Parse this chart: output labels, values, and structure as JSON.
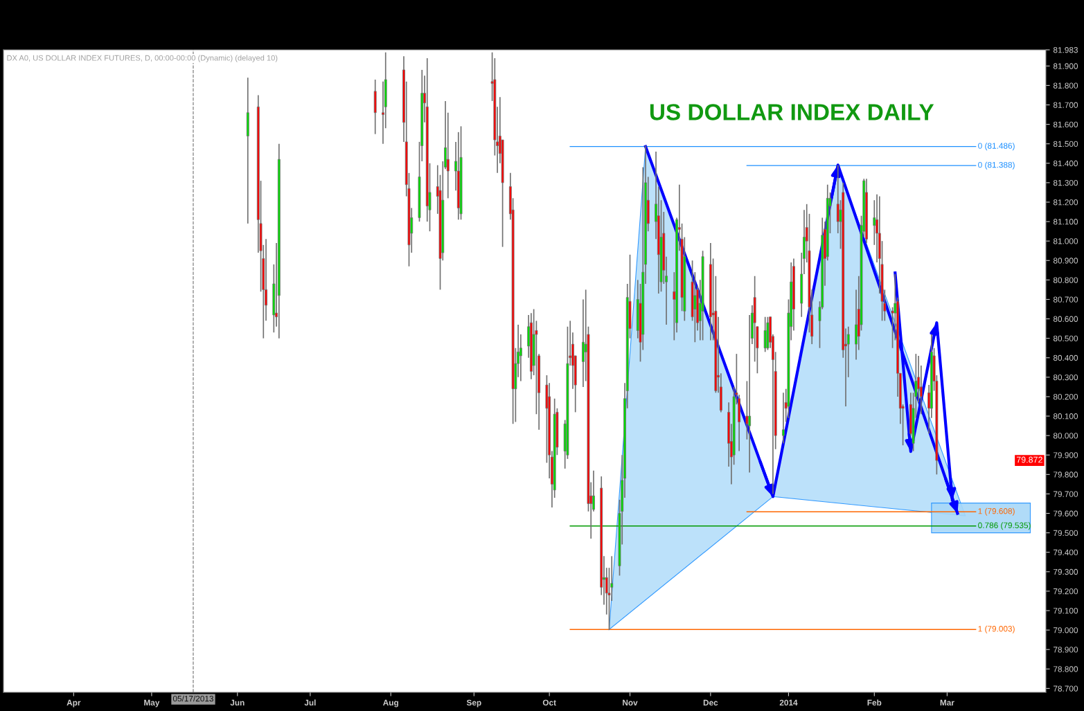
{
  "chart_data": {
    "type": "candlestick",
    "title": "US DOLLAR INDEX DAILY",
    "annotations": [
      "DX A0, US DOLLAR INDEX FUTURES, D, 00:00-00:00 (Dynamic) (delayed 10)",
      {
        "text": "79.872",
        "y": 79.872
      }
    ],
    "xlim": [
      "2013-03-05",
      "2014-04-10"
    ],
    "ylim": [
      78.68,
      81.983
    ],
    "xticks": [
      {
        "value": "2013-04-01",
        "label": "Apr"
      },
      {
        "value": "2013-05-01",
        "label": "May"
      },
      {
        "value": "2013-06-03",
        "label": "Jun"
      },
      {
        "value": "2013-07-01",
        "label": "Jul"
      },
      {
        "value": "2013-08-01",
        "label": "Aug"
      },
      {
        "value": "2013-09-02",
        "label": "Sep"
      },
      {
        "value": "2013-10-01",
        "label": "Oct"
      },
      {
        "value": "2013-11-01",
        "label": "Nov"
      },
      {
        "value": "2013-12-02",
        "label": "Dec"
      },
      {
        "value": "2014-01-01",
        "label": "2014"
      },
      {
        "value": "2014-02-03",
        "label": "Feb"
      },
      {
        "value": "2014-03-03",
        "label": "Mar"
      }
    ],
    "yticks": [
      {
        "value": 78.7,
        "label": "78.700"
      },
      {
        "value": 78.8,
        "label": "78.800"
      },
      {
        "value": 78.9,
        "label": "78.900"
      },
      {
        "value": 79.0,
        "label": "79.000"
      },
      {
        "value": 79.1,
        "label": "79.100"
      },
      {
        "value": 79.2,
        "label": "79.200"
      },
      {
        "value": 79.3,
        "label": "79.300"
      },
      {
        "value": 79.4,
        "label": "79.400"
      },
      {
        "value": 79.5,
        "label": "79.500"
      },
      {
        "value": 79.6,
        "label": "79.600"
      },
      {
        "value": 79.7,
        "label": "79.700"
      },
      {
        "value": 79.8,
        "label": "79.800"
      },
      {
        "value": 79.9,
        "label": "79.900"
      },
      {
        "value": 80.0,
        "label": "80.000"
      },
      {
        "value": 80.1,
        "label": "80.100"
      },
      {
        "value": 80.2,
        "label": "80.200"
      },
      {
        "value": 80.3,
        "label": "80.300"
      },
      {
        "value": 80.4,
        "label": "80.400"
      },
      {
        "value": 80.5,
        "label": "80.500"
      },
      {
        "value": 80.6,
        "label": "80.600"
      },
      {
        "value": 80.7,
        "label": "80.700"
      },
      {
        "value": 80.8,
        "label": "80.800"
      },
      {
        "value": 80.9,
        "label": "80.900"
      },
      {
        "value": 81.0,
        "label": "81.000"
      },
      {
        "value": 81.1,
        "label": "81.100"
      },
      {
        "value": 81.2,
        "label": "81.200"
      },
      {
        "value": 81.3,
        "label": "81.300"
      },
      {
        "value": 81.4,
        "label": "81.400"
      },
      {
        "value": 81.5,
        "label": "81.500"
      },
      {
        "value": 81.6,
        "label": "81.600"
      },
      {
        "value": 81.7,
        "label": "81.700"
      },
      {
        "value": 81.8,
        "label": "81.800"
      },
      {
        "value": 81.9,
        "label": "81.900"
      },
      {
        "value": 81.983,
        "label": "81.983"
      }
    ],
    "grid": false,
    "legend": false,
    "ref_lines": [
      {
        "axis": "x",
        "value": "2013-05-17",
        "label": "05/17/2013",
        "color": "#808080",
        "line_style": "dashed"
      }
    ],
    "x": [
      "2013-06-07",
      "2013-06-11",
      "2013-06-12",
      "2013-06-13",
      "2013-06-14",
      "2013-06-17",
      "2013-06-18",
      "2013-06-19",
      "2013-07-26",
      "2013-07-29",
      "2013-07-30",
      "2013-08-06",
      "2013-08-07",
      "2013-08-08",
      "2013-08-09",
      "2013-08-12",
      "2013-08-13",
      "2013-08-14",
      "2013-08-15",
      "2013-08-16",
      "2013-08-19",
      "2013-08-20",
      "2013-08-21",
      "2013-08-22",
      "2013-08-23",
      "2013-08-26",
      "2013-08-27",
      "2013-08-28",
      "2013-09-09",
      "2013-09-10",
      "2013-09-11",
      "2013-09-12",
      "2013-09-13",
      "2013-09-16",
      "2013-09-17",
      "2013-09-18",
      "2013-09-19",
      "2013-09-20",
      "2013-09-23",
      "2013-09-24",
      "2013-09-25",
      "2013-09-26",
      "2013-09-27",
      "2013-09-30",
      "2013-10-01",
      "2013-10-02",
      "2013-10-03",
      "2013-10-04",
      "2013-10-07",
      "2013-10-08",
      "2013-10-09",
      "2013-10-10",
      "2013-10-11",
      "2013-10-14",
      "2013-10-15",
      "2013-10-16",
      "2013-10-17",
      "2013-10-18",
      "2013-10-21",
      "2013-10-22",
      "2013-10-23",
      "2013-10-24",
      "2013-10-25",
      "2013-10-28",
      "2013-10-29",
      "2013-10-30",
      "2013-10-31",
      "2013-11-01",
      "2013-11-04",
      "2013-11-05",
      "2013-11-06",
      "2013-11-07",
      "2013-11-08",
      "2013-11-11",
      "2013-11-12",
      "2013-11-13",
      "2013-11-14",
      "2013-11-15",
      "2013-11-18",
      "2013-11-19",
      "2013-11-20",
      "2013-11-21",
      "2013-11-22",
      "2013-11-25",
      "2013-11-26",
      "2013-11-27",
      "2013-11-28",
      "2013-11-29",
      "2013-12-02",
      "2013-12-03",
      "2013-12-04",
      "2013-12-05",
      "2013-12-06",
      "2013-12-09",
      "2013-12-10",
      "2013-12-11",
      "2013-12-12",
      "2013-12-13",
      "2013-12-16",
      "2013-12-17",
      "2013-12-18",
      "2013-12-19",
      "2013-12-20",
      "2013-12-23",
      "2013-12-24",
      "2013-12-25",
      "2013-12-26",
      "2013-12-27",
      "2013-12-30",
      "2013-12-31",
      "2014-01-01",
      "2014-01-02",
      "2014-01-03",
      "2014-01-06",
      "2014-01-07",
      "2014-01-08",
      "2014-01-09",
      "2014-01-10",
      "2014-01-13",
      "2014-01-14",
      "2014-01-15",
      "2014-01-16",
      "2014-01-17",
      "2014-01-20",
      "2014-01-21",
      "2014-01-22",
      "2014-01-23",
      "2014-01-24",
      "2014-01-27",
      "2014-01-28",
      "2014-01-29",
      "2014-01-30",
      "2014-01-31",
      "2014-02-03",
      "2014-02-04",
      "2014-02-05",
      "2014-02-06",
      "2014-02-07",
      "2014-02-10",
      "2014-02-11",
      "2014-02-12",
      "2014-02-13",
      "2014-02-14",
      "2014-02-17",
      "2014-02-18",
      "2014-02-19",
      "2014-02-20",
      "2014-02-21",
      "2014-02-24",
      "2014-02-25",
      "2014-02-26",
      "2014-02-27"
    ],
    "ohlc": [
      [
        81.54,
        81.84,
        81.09,
        81.66
      ],
      [
        81.69,
        81.75,
        80.94,
        81.11
      ],
      [
        81.09,
        81.31,
        80.74,
        80.95
      ],
      [
        80.91,
        80.98,
        80.5,
        80.75
      ],
      [
        80.75,
        81.01,
        80.59,
        80.67
      ],
      [
        80.62,
        80.88,
        80.53,
        80.78
      ],
      [
        80.63,
        80.99,
        80.56,
        80.61
      ],
      [
        80.72,
        81.5,
        80.5,
        81.42
      ],
      [
        81.77,
        81.83,
        81.55,
        81.66
      ],
      [
        81.66,
        81.82,
        81.5,
        81.65
      ],
      [
        81.69,
        81.97,
        81.58,
        81.83
      ],
      [
        81.88,
        81.95,
        81.51,
        81.61
      ],
      [
        81.51,
        81.82,
        81.23,
        81.29
      ],
      [
        81.27,
        81.35,
        80.87,
        80.98
      ],
      [
        81.04,
        81.17,
        80.94,
        81.12
      ],
      [
        81.12,
        81.51,
        81.1,
        81.33
      ],
      [
        81.49,
        81.88,
        81.41,
        81.76
      ],
      [
        81.76,
        81.85,
        81.61,
        81.71
      ],
      [
        81.69,
        81.94,
        81.1,
        81.18
      ],
      [
        81.16,
        81.4,
        81.05,
        81.25
      ],
      [
        81.28,
        81.39,
        81.14,
        81.23
      ],
      [
        81.26,
        81.34,
        80.75,
        80.91
      ],
      [
        80.94,
        81.41,
        80.9,
        81.21
      ],
      [
        81.38,
        81.72,
        81.37,
        81.48
      ],
      [
        81.42,
        81.66,
        81.22,
        81.36
      ],
      [
        81.36,
        81.51,
        81.26,
        81.41
      ],
      [
        81.36,
        81.56,
        81.11,
        81.17
      ],
      [
        81.14,
        81.59,
        81.11,
        81.43
      ],
      [
        81.82,
        81.97,
        81.72,
        81.81
      ],
      [
        81.83,
        81.94,
        81.44,
        81.52
      ],
      [
        81.51,
        81.69,
        81.35,
        81.49
      ],
      [
        81.54,
        81.74,
        81.4,
        81.45
      ],
      [
        81.52,
        81.52,
        80.97,
        81.3
      ],
      [
        81.28,
        81.35,
        81.11,
        81.14
      ],
      [
        81.16,
        81.22,
        80.06,
        80.24
      ],
      [
        80.24,
        80.45,
        80.07,
        80.37
      ],
      [
        80.37,
        80.57,
        80.3,
        80.43
      ],
      [
        80.41,
        80.52,
        80.28,
        80.45
      ],
      [
        80.46,
        80.62,
        80.4,
        80.56
      ],
      [
        80.58,
        80.63,
        80.29,
        80.33
      ],
      [
        80.36,
        80.65,
        80.31,
        80.52
      ],
      [
        80.54,
        80.59,
        80.11,
        80.52
      ],
      [
        80.41,
        80.42,
        80.03,
        80.22
      ],
      [
        80.26,
        80.31,
        79.86,
        80.14
      ],
      [
        80.2,
        80.27,
        79.78,
        79.9
      ],
      [
        79.89,
        79.92,
        79.63,
        79.75
      ],
      [
        79.72,
        80.19,
        79.68,
        80.11
      ],
      [
        80.12,
        80.14,
        79.9,
        79.94
      ],
      [
        79.92,
        80.08,
        79.83,
        80.06
      ],
      [
        79.9,
        80.56,
        79.88,
        80.37
      ],
      [
        80.41,
        80.59,
        80.36,
        80.4
      ],
      [
        80.47,
        80.53,
        80.24,
        80.36
      ],
      [
        80.41,
        80.41,
        80.12,
        80.26
      ],
      [
        80.38,
        80.7,
        80.25,
        80.48
      ],
      [
        80.43,
        80.75,
        80.28,
        80.47
      ],
      [
        80.52,
        80.56,
        79.61,
        79.65
      ],
      [
        79.69,
        79.76,
        79.47,
        79.65
      ],
      [
        79.62,
        79.82,
        79.61,
        79.69
      ],
      [
        79.73,
        79.79,
        79.18,
        79.22
      ],
      [
        79.26,
        79.38,
        79.13,
        79.27
      ],
      [
        79.27,
        79.32,
        79.08,
        79.19
      ],
      [
        79.19,
        79.32,
        79.0,
        79.18
      ],
      [
        79.22,
        79.38,
        79.15,
        79.24
      ],
      [
        79.33,
        79.67,
        79.28,
        79.6
      ],
      [
        79.61,
        79.9,
        79.44,
        79.77
      ],
      [
        79.78,
        80.27,
        79.68,
        80.19
      ],
      [
        80.23,
        80.78,
        80.14,
        80.71
      ],
      [
        80.69,
        80.93,
        80.5,
        80.55
      ],
      [
        80.54,
        80.8,
        80.5,
        80.7
      ],
      [
        80.68,
        80.78,
        80.38,
        80.48
      ],
      [
        80.52,
        81.38,
        80.44,
        80.84
      ],
      [
        80.88,
        81.49,
        80.78,
        81.3
      ],
      [
        81.21,
        81.33,
        81.05,
        81.09
      ],
      [
        81.1,
        81.46,
        81.01,
        81.19
      ],
      [
        81.13,
        81.28,
        80.73,
        80.93
      ],
      [
        80.79,
        81.21,
        80.74,
        81.02
      ],
      [
        81.04,
        81.15,
        80.78,
        80.85
      ],
      [
        80.79,
        80.92,
        80.57,
        80.82
      ],
      [
        80.74,
        80.84,
        80.49,
        80.7
      ],
      [
        80.58,
        81.12,
        80.53,
        81.11
      ],
      [
        81.07,
        81.29,
        80.95,
        81.06
      ],
      [
        81.01,
        81.09,
        80.64,
        80.71
      ],
      [
        80.64,
        81.02,
        80.59,
        80.92
      ],
      [
        80.79,
        80.9,
        80.59,
        80.61
      ],
      [
        80.65,
        80.84,
        80.48,
        80.72
      ],
      [
        80.75,
        80.77,
        80.54,
        80.58
      ],
      [
        80.59,
        80.8,
        80.49,
        80.68
      ],
      [
        80.64,
        80.95,
        80.49,
        80.92
      ],
      [
        80.88,
        80.99,
        80.49,
        80.61
      ],
      [
        80.63,
        80.91,
        80.49,
        80.62
      ],
      [
        80.64,
        80.82,
        80.22,
        80.23
      ],
      [
        80.31,
        80.61,
        80.22,
        80.3
      ],
      [
        80.25,
        80.32,
        80.12,
        80.13
      ],
      [
        80.12,
        80.17,
        79.84,
        79.96
      ],
      [
        79.97,
        80.06,
        79.75,
        79.89
      ],
      [
        79.9,
        80.25,
        79.85,
        80.2
      ],
      [
        80.22,
        80.42,
        80.16,
        80.21
      ],
      [
        80.19,
        80.21,
        79.92,
        80.07
      ],
      [
        80.1,
        80.28,
        79.98,
        80.06
      ],
      [
        80.05,
        80.62,
        79.81,
        80.1
      ],
      [
        80.5,
        80.67,
        80.47,
        80.63
      ],
      [
        80.71,
        80.82,
        80.38,
        80.58
      ],
      [
        80.56,
        80.56,
        80.32,
        80.45
      ],
      [
        80.45,
        80.61,
        80.43,
        80.54
      ],
      [
        80.45,
        80.61,
        80.44,
        80.58
      ],
      [
        80.61,
        80.61,
        80.45,
        80.48
      ],
      [
        80.51,
        80.52,
        79.7,
        80.39
      ],
      [
        80.33,
        80.43,
        79.93,
        80.0
      ],
      [
        80.0,
        80.22,
        79.96,
        80.03
      ],
      [
        80.17,
        80.24,
        80.07,
        80.14
      ],
      [
        80.15,
        80.7,
        80.09,
        80.63
      ],
      [
        80.56,
        80.89,
        80.49,
        80.79
      ],
      [
        80.87,
        80.91,
        80.54,
        80.65
      ],
      [
        80.68,
        80.94,
        80.61,
        80.83
      ],
      [
        80.91,
        81.16,
        80.83,
        81.02
      ],
      [
        81.07,
        81.19,
        80.89,
        81.0
      ],
      [
        80.95,
        81.14,
        80.53,
        80.66
      ],
      [
        80.62,
        80.75,
        80.47,
        80.51
      ],
      [
        80.59,
        80.69,
        80.45,
        80.66
      ],
      [
        80.66,
        81.12,
        80.65,
        81.03
      ],
      [
        81.06,
        81.1,
        80.77,
        80.91
      ],
      [
        80.92,
        81.29,
        80.9,
        81.22
      ],
      [
        81.18,
        81.25,
        81.04,
        81.22
      ],
      [
        81.19,
        81.39,
        81.04,
        81.1
      ],
      [
        81.1,
        81.21,
        80.96,
        81.16
      ],
      [
        81.25,
        81.3,
        80.4,
        80.44
      ],
      [
        80.47,
        80.55,
        80.15,
        80.46
      ],
      [
        80.47,
        80.56,
        80.3,
        80.52
      ],
      [
        80.47,
        80.75,
        80.39,
        80.57
      ],
      [
        80.65,
        80.82,
        80.44,
        80.51
      ],
      [
        80.57,
        81.13,
        80.54,
        81.08
      ],
      [
        81.05,
        81.32,
        81.02,
        81.31
      ],
      [
        81.25,
        81.32,
        80.99,
        81.01
      ],
      [
        81.08,
        81.21,
        80.98,
        81.12
      ],
      [
        81.11,
        81.24,
        80.89,
        81.04
      ],
      [
        81.04,
        81.23,
        80.73,
        80.91
      ],
      [
        80.88,
        81.0,
        80.59,
        80.69
      ],
      [
        80.68,
        80.75,
        80.59,
        80.64
      ],
      [
        80.64,
        80.66,
        80.45,
        80.63
      ],
      [
        80.63,
        80.83,
        80.49,
        80.68
      ],
      [
        80.69,
        80.71,
        80.2,
        80.32
      ],
      [
        80.32,
        80.32,
        80.06,
        80.14
      ],
      [
        80.15,
        80.16,
        79.95,
        80.14
      ],
      [
        80.16,
        80.22,
        80.0,
        80.01
      ],
      [
        79.96,
        80.22,
        79.92,
        80.14
      ],
      [
        80.2,
        80.42,
        80.09,
        80.28
      ],
      [
        80.3,
        80.41,
        80.17,
        80.24
      ],
      [
        80.25,
        80.36,
        80.11,
        80.2
      ],
      [
        80.22,
        80.26,
        80.01,
        80.14
      ],
      [
        80.14,
        80.52,
        80.09,
        80.43
      ],
      [
        80.41,
        80.45,
        80.23,
        80.28
      ],
      [
        80.28,
        80.31,
        79.8,
        79.872
      ]
    ],
    "series": [
      {
        "type": "area",
        "color": "#b5defa",
        "x": [
          "2013-10-24",
          "2013-11-07",
          "2013-12-26"
        ],
        "values": [
          79.003,
          81.486,
          79.686
        ]
      },
      {
        "type": "area",
        "color": "#b5defa",
        "x": [
          "2013-12-26",
          "2014-01-20",
          "2014-03-10"
        ],
        "values": [
          79.686,
          81.391,
          79.587
        ]
      },
      {
        "type": "area",
        "color": "#a8d8f8",
        "x": [
          "2014-02-25",
          "2014-04-04",
          "2014-04-04",
          "2014-02-25"
        ],
        "values": [
          79.5,
          79.5,
          79.653,
          79.653
        ]
      },
      {
        "type": "line",
        "name": "0 (81.486)",
        "color": "#1e90ff",
        "x": [
          "2013-10-09",
          "2014-03-14"
        ],
        "values": [
          81.486,
          81.486
        ]
      },
      {
        "type": "line",
        "name": "0 (81.388)",
        "color": "#1e90ff",
        "x": [
          "2013-12-16",
          "2014-03-14"
        ],
        "values": [
          81.388,
          81.388
        ]
      },
      {
        "type": "line",
        "name": "1 (79.608)",
        "color": "#ff6600",
        "x": [
          "2013-12-16",
          "2014-03-14"
        ],
        "values": [
          79.608,
          79.608
        ]
      },
      {
        "type": "line",
        "name": "0.786 (79.535)",
        "color": "#009900",
        "x": [
          "2013-10-09",
          "2014-03-14"
        ],
        "values": [
          79.535,
          79.535
        ]
      },
      {
        "type": "line",
        "name": "1 (79.003)",
        "color": "#ff6600",
        "x": [
          "2013-10-09",
          "2014-03-14"
        ],
        "values": [
          79.003,
          79.003
        ]
      },
      {
        "type": "line",
        "color": "#0000ff",
        "x": [
          "2013-11-07",
          "2013-12-26",
          "2014-01-20",
          "2014-03-07"
        ],
        "values": [
          81.486,
          79.686,
          81.391,
          79.6
        ]
      },
      {
        "type": "line",
        "color": "#0000ff",
        "x": [
          "2014-02-11",
          "2014-02-17",
          "2014-02-27",
          "2014-03-05"
        ],
        "values": [
          80.836,
          79.918,
          80.58,
          79.669
        ]
      }
    ]
  }
}
